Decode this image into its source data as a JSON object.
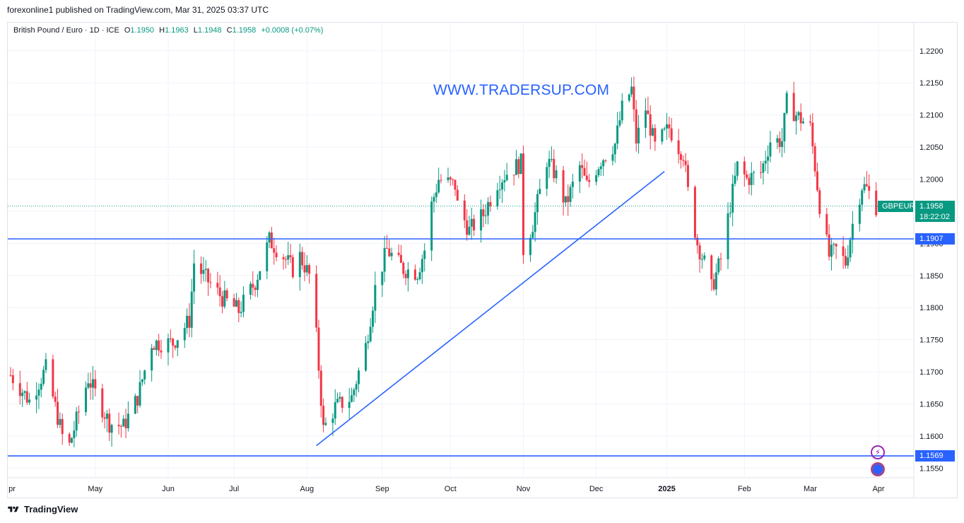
{
  "header": {
    "publisher": "forexonline1 published on TradingView.com, Mar 31, 2025 03:37 UTC"
  },
  "legend": {
    "symbol_desc": "British Pound / Euro · 1D · ICE",
    "o_label": "O",
    "o_val": "1.1950",
    "h_label": "H",
    "h_val": "1.1963",
    "l_label": "L",
    "l_val": "1.1948",
    "c_label": "C",
    "c_val": "1.1958",
    "change": "+0.0008 (+0.07%)"
  },
  "watermark_text": "WWW.TRADERSUP.COM",
  "footer": {
    "brand": "TradingView"
  },
  "colors": {
    "up": "#089981",
    "down": "#f23645",
    "line": "#2962ff",
    "grid": "#f0f3fa",
    "current_price_line": "#089981"
  },
  "price_labels": {
    "symbol_tag": "GBPEUR",
    "current_price": "1.1958",
    "countdown": "18:22:02",
    "line_high": "1.1907",
    "line_low": "1.1569"
  },
  "icons": [
    "lightning-icon",
    "globe-icon"
  ],
  "chart_data": {
    "type": "candlestick",
    "symbol": "GBPEUR",
    "timeframe": "1D",
    "x_labels": [
      "pr",
      "May",
      "Jun",
      "Jul",
      "Aug",
      "Sep",
      "Oct",
      "Nov",
      "Dec",
      "2025",
      "Feb",
      "Mar",
      "Apr"
    ],
    "y_ticks": [
      "1.2200",
      "1.2150",
      "1.2100",
      "1.2050",
      "1.2000",
      "1.1950",
      "1.1900",
      "1.1850",
      "1.1800",
      "1.1750",
      "1.1700",
      "1.1650",
      "1.1600",
      "1.1550"
    ],
    "ylim": [
      1.1535,
      1.2235
    ],
    "horizontal_lines": [
      1.1907,
      1.1569
    ],
    "trendline": {
      "from": [
        "2024-08-05",
        1.1585
      ],
      "to": [
        "2024-12-31",
        1.2012
      ]
    },
    "current_price": 1.1958,
    "anchors": [
      [
        "2024-03-28",
        1.1695
      ],
      [
        "2024-04-05",
        1.1655
      ],
      [
        "2024-04-12",
        1.1705
      ],
      [
        "2024-04-19",
        1.16
      ],
      [
        "2024-04-22",
        1.1585
      ],
      [
        "2024-04-30",
        1.169
      ],
      [
        "2024-05-09",
        1.162
      ],
      [
        "2024-05-15",
        1.1615
      ],
      [
        "2024-05-21",
        1.166
      ],
      [
        "2024-05-27",
        1.1745
      ],
      [
        "2024-06-05",
        1.1745
      ],
      [
        "2024-06-12",
        1.178
      ],
      [
        "2024-06-14",
        1.187
      ],
      [
        "2024-06-18",
        1.185
      ],
      [
        "2024-06-26",
        1.1815
      ],
      [
        "2024-07-03",
        1.1795
      ],
      [
        "2024-07-10",
        1.184
      ],
      [
        "2024-07-16",
        1.1905
      ],
      [
        "2024-07-22",
        1.188
      ],
      [
        "2024-07-26",
        1.186
      ],
      [
        "2024-07-29",
        1.188
      ],
      [
        "2024-08-02",
        1.185
      ],
      [
        "2024-08-05",
        1.1755
      ],
      [
        "2024-08-08",
        1.161
      ],
      [
        "2024-08-13",
        1.1645
      ],
      [
        "2024-08-20",
        1.166
      ],
      [
        "2024-08-26",
        1.174
      ],
      [
        "2024-08-30",
        1.183
      ],
      [
        "2024-09-04",
        1.189
      ],
      [
        "2024-09-11",
        1.186
      ],
      [
        "2024-09-17",
        1.1855
      ],
      [
        "2024-09-20",
        1.189
      ],
      [
        "2024-09-23",
        1.196
      ],
      [
        "2024-09-26",
        1.2
      ],
      [
        "2024-10-03",
        1.199
      ],
      [
        "2024-10-04",
        1.196
      ],
      [
        "2024-10-09",
        1.192
      ],
      [
        "2024-10-15",
        1.1945
      ],
      [
        "2024-10-21",
        1.1995
      ],
      [
        "2024-10-25",
        1.201
      ],
      [
        "2024-10-31",
        1.2025
      ],
      [
        "2024-11-01",
        1.189
      ],
      [
        "2024-11-05",
        1.193
      ],
      [
        "2024-11-11",
        1.203
      ],
      [
        "2024-11-15",
        1.2005
      ],
      [
        "2024-11-19",
        1.196
      ],
      [
        "2024-11-25",
        1.202
      ],
      [
        "2024-11-28",
        1.199
      ],
      [
        "2024-12-04",
        1.203
      ],
      [
        "2024-12-10",
        1.2055
      ],
      [
        "2024-12-13",
        1.211
      ],
      [
        "2024-12-17",
        1.214
      ],
      [
        "2024-12-19",
        1.206
      ],
      [
        "2024-12-23",
        1.211
      ],
      [
        "2024-12-27",
        1.205
      ],
      [
        "2025-01-02",
        1.208
      ],
      [
        "2025-01-06",
        1.205
      ],
      [
        "2025-01-08",
        1.204
      ],
      [
        "2025-01-10",
        1.198
      ],
      [
        "2025-01-14",
        1.19
      ],
      [
        "2025-01-17",
        1.187
      ],
      [
        "2025-01-20",
        1.183
      ],
      [
        "2025-01-24",
        1.1875
      ],
      [
        "2025-01-28",
        1.196
      ],
      [
        "2025-01-31",
        1.202
      ],
      [
        "2025-02-04",
        1.2
      ],
      [
        "2025-02-10",
        1.201
      ],
      [
        "2025-02-14",
        1.206
      ],
      [
        "2025-02-19",
        1.206
      ],
      [
        "2025-02-21",
        1.212
      ],
      [
        "2025-02-25",
        1.21
      ],
      [
        "2025-03-03",
        1.208
      ],
      [
        "2025-03-05",
        1.202
      ],
      [
        "2025-03-07",
        1.196
      ],
      [
        "2025-03-11",
        1.188
      ],
      [
        "2025-03-14",
        1.189
      ],
      [
        "2025-03-18",
        1.187
      ],
      [
        "2025-03-21",
        1.193
      ],
      [
        "2025-03-25",
        1.199
      ],
      [
        "2025-03-27",
        1.1985
      ],
      [
        "2025-03-31",
        1.1958
      ]
    ]
  }
}
